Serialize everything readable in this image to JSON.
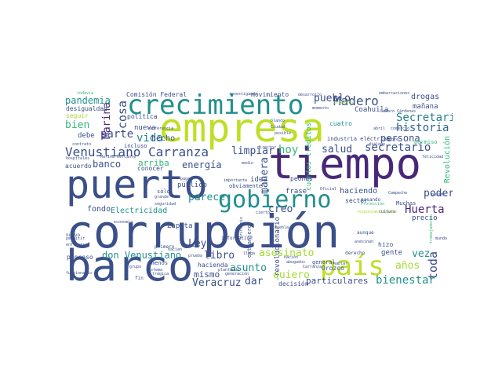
{
  "palette": {
    "navy": "#3b4f8a",
    "deep_purple": "#482878",
    "teal": "#21908c",
    "teal_dark": "#26818e",
    "green": "#35b779",
    "lime": "#a5db36",
    "yellow_green": "#bddf26",
    "mid_blue": "#31688e"
  },
  "words": {
    "corrupcion": "corrupción",
    "barco": "barco",
    "puerto": "puerto",
    "tiempo": "tiempo",
    "empresa": "empresa",
    "crecimiento": "crecimiento",
    "pais": "país",
    "gobierno": "gobierno",
    "venustiano_carranza": "Venustiano Carranza",
    "madero": "Madero",
    "secretaria": "Secretaría",
    "historia": "historia",
    "persona": "persona",
    "secretario": "secretario",
    "pueblo": "pueblo",
    "huerta": "Huerta",
    "poder": "poder",
    "bienestar": "bienestar",
    "particulares": "particulares",
    "asesinato": "asesinato",
    "anos": "años",
    "vez": "vez",
    "toda": "toda",
    "quiero": "quiero",
    "asunto": "asunto",
    "libro": "libro",
    "mismo": "mismo",
    "veracruz": "Veracruz",
    "dar": "dar",
    "creo": "creo",
    "ley": "Ley",
    "don_venustiano": "don Venustiano",
    "vida": "vida",
    "parte": "parte",
    "cosa": "cosa",
    "marina": "Marina",
    "bien": "bien",
    "pandemia": "pandemia",
    "banco": "banco",
    "hoy": "hoy",
    "salud": "salud",
    "energia": "energía",
    "parece": "parece",
    "limpiar": "limpiar",
    "manera": "manera",
    "arriba": "arriba",
    "electricidad": "Electricidad",
    "fondo": "fondo",
    "hecho": "hecho",
    "nueva": "nueva",
    "debe": "debe",
    "zapata": "Zapata",
    "publico": "público",
    "idea": "idea",
    "frase": "frase",
    "haciendo": "haciendo",
    "gente": "gente",
    "precio": "precio",
    "revolucion": "Revolución",
    "drogas": "drogas",
    "manana": "mañana",
    "coahuila": "Coahuila",
    "cuatro": "cuatro",
    "comision_federal": "Comisión Federal",
    "movimiento": "movimiento",
    "politica": "política",
    "desigualdad": "desigualdad",
    "seguir": "seguir",
    "acuerdo": "acuerdo",
    "conocer": "conocer",
    "proceso": "proceso",
    "sector": "sector",
    "hacienda": "hacienda",
    "orozco": "Orozco",
    "general": "general",
    "decision": "decisión",
    "obviamente": "obviamente",
    "revolucionario": "revolucionario",
    "cuantos_creditos": "cuantos créditos",
    "peones": "peones",
    "industria_electrica": "industria eléctrica",
    "hizo": "hizo",
    "incluso": "incluso",
    "solo": "sólo",
    "menos": "menos",
    "primero": "primero",
    "nuevo": "nuevo",
    "muchas": "Muchas",
    "pasando": "pasando",
    "derecho": "derecho",
    "informacion": "información",
    "embarcaciones": "embarcaciones",
    "desarrollo": "desarrollo",
    "investigando": "investigando",
    "lazaro_cardenas": "Lázaro Cárdenas",
    "aunque": "aunque",
    "cierto": "cierto",
    "nacion": "nación",
    "asesinan": "asesinan",
    "trabajadores": "trabajadores",
    "contrato": "contrato",
    "hospitales": "hospitales",
    "felicidad": "felicidad",
    "permiso": "permiso",
    "sistema": "sistema",
    "generacion": "generación",
    "mundo": "mundo",
    "todavia": "todavía",
    "director": "director",
    "campeche": "Campeche",
    "oficial": "Oficial",
    "abogados": "abogados",
    "extranjero": "extranjero",
    "responsabilidades": "responsabilidades",
    "carranza": "Carranza",
    "ciudad": "Ciudad",
    "principio": "principio",
    "importante": "importante",
    "pagar": "pagar",
    "grande": "grande",
    "medio": "medio",
    "permitir": "permitir",
    "esperar": "esperar",
    "senado": "Senado",
    "espacio": "espacio",
    "proteccion": "Protección",
    "llega": "llega",
    "mejor": "mejor",
    "empleo": "empleo",
    "quedo": "quedó",
    "dialogo": "diálogo",
    "rango": "rango",
    "grupo": "grupo",
    "enfrentar": "enfrentar",
    "cultura": "cultura",
    "conferencia": "conferencia",
    "fuerza": "fuerza",
    "dificil": "difícil",
    "servicio": "servicio",
    "puebla": "Puebla",
    "ministro": "ministro",
    "marina_mercante": "Marina Mercante",
    "economia": "economía",
    "reforma": "reforma",
    "calidad": "calidad",
    "hablar": "hablar",
    "deuda": "deuda",
    "tema": "tema",
    "plata": "plata",
    "blanco": "blanco",
    "posible": "posible",
    "dinero": "dinero",
    "hacian": "hacían",
    "funcionario": "funcionario",
    "tragica": "trágica",
    "petroleo": "petróleo",
    "abril": "abril",
    "puede": "puede",
    "seguridad": "seguridad",
    "tambien": "también",
    "llevo": "llevó",
    "guerra": "guerra",
    "pais_minor": "luego",
    "presidente": "presidente",
    "historico": "histórico",
    "protesta": "protesta",
    "comercio": "comercio",
    "cuenta": "cuenta",
    "despues": "después",
    "fin": "fin",
    "prueba": "prueba",
    "plantando": "plantando",
    "hombre": "hombre",
    "momento": "momento",
    "vivir": "vivir",
    "puntos": "puntos",
    "sabe": "sabe",
    "parar": "parar",
    "senora": "señora",
    "estado": "estado"
  }
}
